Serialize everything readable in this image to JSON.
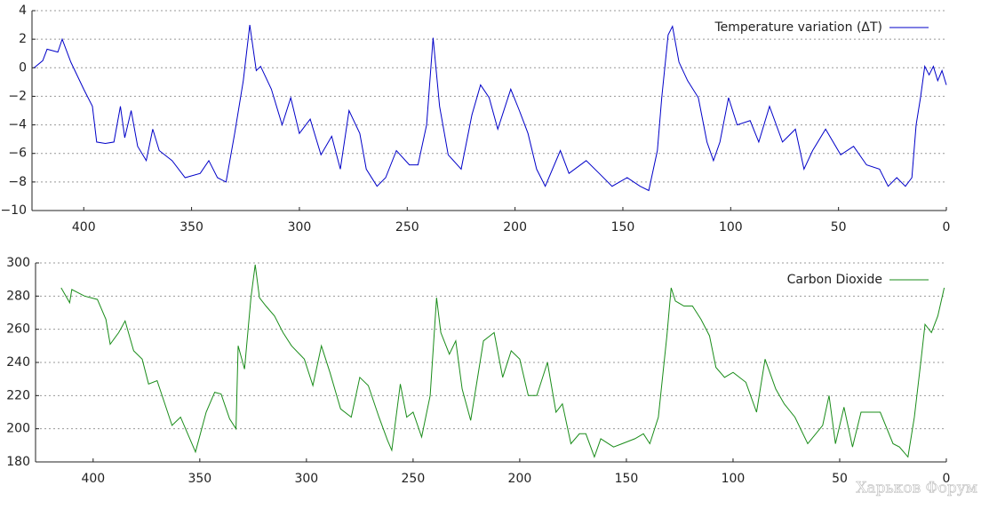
{
  "chart_data": [
    {
      "type": "line",
      "x": [
        423,
        419,
        417,
        412,
        410,
        406,
        400,
        396,
        394,
        390,
        386,
        383,
        381,
        378,
        375,
        371,
        368,
        365,
        359,
        353,
        346,
        342,
        338,
        334,
        330,
        326,
        323,
        320,
        318,
        313,
        308,
        304,
        300,
        295,
        290,
        285,
        281,
        277,
        272,
        269,
        264,
        260,
        255,
        249,
        245,
        241,
        238,
        235,
        231,
        225,
        220,
        216,
        212,
        208,
        202,
        198,
        194,
        190,
        186,
        179,
        175,
        167,
        161,
        155,
        148,
        142,
        138,
        134,
        132,
        129,
        127,
        124,
        120,
        115,
        111,
        108,
        105,
        101,
        97,
        91,
        87,
        82,
        76,
        70,
        66,
        62,
        56,
        49,
        43,
        37,
        31,
        27,
        23,
        19,
        16,
        14,
        12,
        10,
        8,
        6,
        4,
        2,
        0
      ],
      "series": [
        {
          "name": "Temperature variation (ΔT)",
          "color": "#0000c8",
          "values": [
            0,
            0.5,
            1.3,
            1.1,
            2,
            0.4,
            -1.5,
            -2.7,
            -5.2,
            -5.3,
            -5.2,
            -2.7,
            -4.9,
            -3,
            -5.5,
            -6.5,
            -4.3,
            -5.8,
            -6.5,
            -7.7,
            -7.4,
            -6.5,
            -7.7,
            -8,
            -4.6,
            -0.9,
            3,
            -0.2,
            0.1,
            -1.5,
            -4,
            -2.1,
            -4.6,
            -3.6,
            -6.1,
            -4.8,
            -7.1,
            -3,
            -4.6,
            -7.1,
            -8.3,
            -7.7,
            -5.8,
            -6.8,
            -6.8,
            -4,
            2.1,
            -2.7,
            -6.1,
            -7.1,
            -3.3,
            -1.2,
            -2.1,
            -4.3,
            -1.5,
            -3,
            -4.6,
            -7.1,
            -8.3,
            -5.8,
            -7.4,
            -6.5,
            -7.4,
            -8.3,
            -7.7,
            -8.3,
            -8.6,
            -5.8,
            -2.1,
            2.3,
            2.9,
            0.4,
            -0.9,
            -2.1,
            -5.2,
            -6.5,
            -5.2,
            -2.1,
            -4,
            -3.7,
            -5.2,
            -2.7,
            -5.2,
            -4.3,
            -7.1,
            -5.8,
            -4.3,
            -6.1,
            -5.5,
            -6.8,
            -7.1,
            -8.3,
            -7.7,
            -8.3,
            -7.7,
            -4,
            -2.1,
            0.1,
            -0.5,
            0.1,
            -0.9,
            -0.2,
            -1.2
          ]
        }
      ],
      "xlim": [
        424,
        0
      ],
      "ylim": [
        -10,
        4
      ],
      "xticks": [
        400,
        350,
        300,
        250,
        200,
        150,
        100,
        50,
        0
      ],
      "yticks": [
        {
          "value": -10,
          "label": "−10"
        },
        {
          "value": -8,
          "label": "−8"
        },
        {
          "value": -6,
          "label": "−6"
        },
        {
          "value": -4,
          "label": "−4"
        },
        {
          "value": -2,
          "label": "−2"
        },
        0,
        2,
        4
      ],
      "grid": true,
      "legend": "upper right"
    },
    {
      "type": "line",
      "x": [
        415,
        411,
        410,
        404,
        398,
        394,
        392,
        388,
        385,
        381,
        377,
        374,
        370,
        363,
        359,
        352,
        347,
        343,
        340,
        336,
        333,
        332,
        329,
        326,
        324,
        322,
        319,
        315,
        311,
        307,
        301,
        297,
        293,
        289,
        284,
        279,
        275,
        271,
        266,
        262,
        260,
        256,
        253,
        250,
        246,
        242,
        239,
        237,
        233,
        230,
        227,
        223,
        220,
        217,
        212,
        208,
        204,
        200,
        196,
        192,
        187,
        183,
        180,
        176,
        172,
        169,
        165,
        162,
        156,
        152,
        146,
        142,
        139,
        135,
        131,
        129,
        127,
        123,
        119,
        115,
        111,
        108,
        104,
        100,
        94,
        89,
        85,
        80,
        76,
        71,
        65,
        58,
        55,
        52,
        48,
        44,
        40,
        31,
        25,
        22,
        18,
        15,
        12,
        10,
        7,
        4,
        1
      ],
      "series": [
        {
          "name": "Carbon Dioxide",
          "color": "#1a8c1a",
          "values": [
            285,
            276,
            284,
            280,
            278,
            266,
            251,
            258,
            265,
            247,
            242,
            227,
            229,
            202,
            207,
            186,
            210,
            222,
            221,
            206,
            200,
            250,
            236,
            279,
            299,
            279,
            274,
            268,
            258,
            250,
            242,
            226,
            250,
            234,
            212,
            207,
            231,
            226,
            207,
            193,
            187,
            227,
            207,
            210,
            195,
            220,
            279,
            258,
            245,
            253,
            224,
            205,
            229,
            253,
            258,
            231,
            247,
            242,
            220,
            220,
            240,
            210,
            215,
            191,
            197,
            197,
            183,
            194,
            189,
            191,
            194,
            197,
            191,
            207,
            256,
            285,
            277,
            274,
            274,
            266,
            256,
            237,
            231,
            234,
            228,
            210,
            242,
            224,
            215,
            207,
            191,
            202,
            220,
            191,
            213,
            189,
            210,
            210,
            191,
            189,
            183,
            207,
            240,
            263,
            258,
            268,
            285
          ]
        }
      ],
      "xlim": [
        427,
        0
      ],
      "ylim": [
        180,
        300
      ],
      "xticks": [
        400,
        350,
        300,
        250,
        200,
        150,
        100,
        50,
        0
      ],
      "yticks": [
        180,
        200,
        220,
        240,
        260,
        280,
        300
      ],
      "grid": true,
      "legend": "upper right"
    }
  ],
  "watermark": "Харьков Форум"
}
